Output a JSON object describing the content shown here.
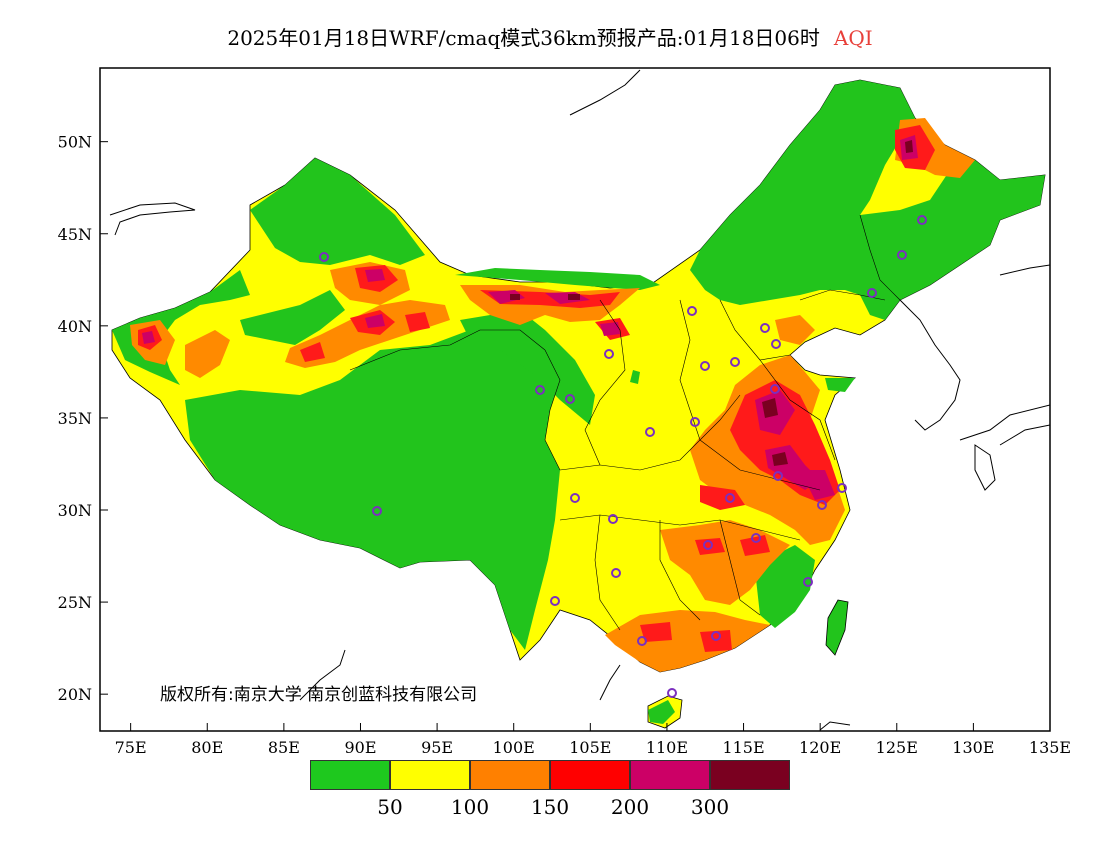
{
  "title": {
    "main": "2025年01月18日WRF/cmaq模式36km预报产品:01月18日06时",
    "variable": "AQI"
  },
  "axes": {
    "lon_ticks": [
      "75E",
      "80E",
      "85E",
      "90E",
      "95E",
      "100E",
      "105E",
      "110E",
      "115E",
      "120E",
      "125E",
      "130E",
      "135E"
    ],
    "lat_ticks": [
      "20N",
      "25N",
      "30N",
      "35N",
      "40N",
      "45N",
      "50N"
    ],
    "lon_range": [
      73,
      135
    ],
    "lat_range": [
      18,
      54
    ]
  },
  "legend": {
    "colors": [
      "#1ec81e",
      "#ffff00",
      "#ff8000",
      "#ff0000",
      "#cc0066",
      "#7a0020"
    ],
    "labels": [
      "50",
      "100",
      "150",
      "200",
      "300"
    ]
  },
  "copyright": "版权所有:南京大学 南京创蓝科技有限公司",
  "colors": {
    "green": "#22c41c",
    "yellow": "#ffff00",
    "orange": "#ff8a00",
    "red": "#ff1a1a",
    "magenta": "#cc0066",
    "maroon": "#7a0020",
    "station_marker": "#7b2fbf"
  }
}
